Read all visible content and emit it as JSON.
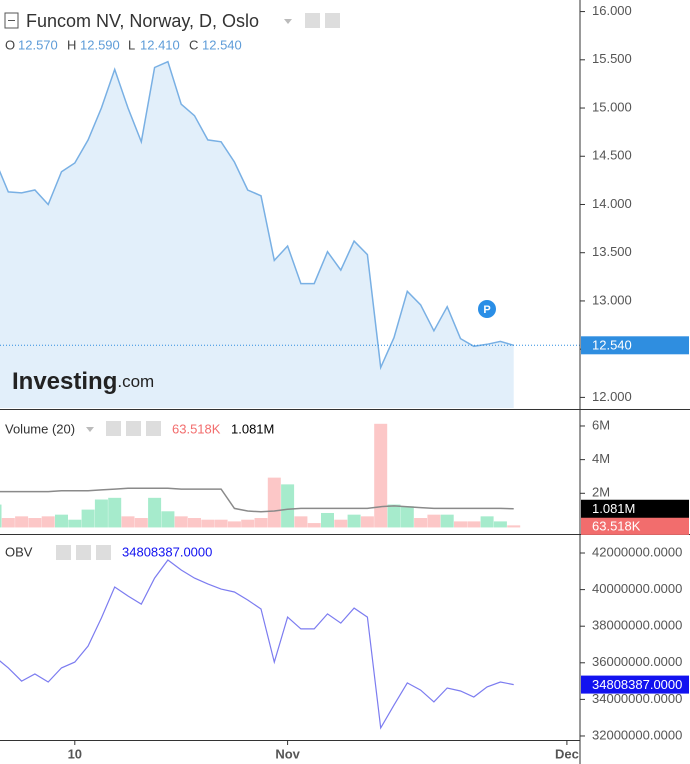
{
  "chart_data": [
    {
      "type": "area",
      "title": "Funcom NV, Norway, D, Oslo",
      "ohlc": [
        {
          "name": "O",
          "label": "12.570"
        },
        {
          "name": "H",
          "label": "12.590"
        },
        {
          "name": "L",
          "label": "12.410"
        },
        {
          "name": "C",
          "label": "12.540"
        }
      ],
      "watermark": [
        "Investing",
        ".com"
      ],
      "color": "#79b0e4",
      "fill": "#e2effa",
      "values": [
        14.46,
        14.13,
        14.12,
        14.15,
        14.0,
        14.34,
        14.43,
        14.67,
        15.0,
        15.4,
        15.0,
        14.65,
        15.42,
        15.48,
        15.04,
        14.92,
        14.67,
        14.65,
        14.44,
        14.15,
        14.09,
        13.42,
        13.57,
        13.18,
        13.18,
        13.51,
        13.32,
        13.62,
        13.48,
        12.31,
        12.62,
        13.1,
        12.96,
        12.69,
        12.94,
        12.61,
        12.53,
        12.55,
        12.58,
        12.54
      ],
      "current": {
        "value": 12.54,
        "label": "12.540",
        "color": "#2f8ee0"
      },
      "xlim": [
        0.376,
        43.985
      ],
      "ylim": [
        11.89,
        16.12
      ],
      "yticks": [
        {
          "value": 16,
          "label": "16.000"
        },
        {
          "value": 15.5,
          "label": "15.500"
        },
        {
          "value": 15,
          "label": "15.000"
        },
        {
          "value": 14.5,
          "label": "14.500"
        },
        {
          "value": 14,
          "label": "14.000"
        },
        {
          "value": 13.5,
          "label": "13.500"
        },
        {
          "value": 13,
          "label": "13.000"
        },
        {
          "value": 12.5,
          "label": "12.500"
        },
        {
          "value": 12,
          "label": "12.000"
        }
      ]
    },
    {
      "type": "bar",
      "title": "Volume (20)",
      "series": [
        {
          "type": "bar",
          "values": [
            1300000,
            500000,
            600000,
            500000,
            600000,
            700000,
            400000,
            1000000,
            1600000,
            1700000,
            600000,
            500000,
            1700000,
            900000,
            600000,
            500000,
            400000,
            400000,
            300000,
            400000,
            500000,
            2900000,
            2500000,
            600000,
            200000,
            800000,
            400000,
            700000,
            600000,
            6100000,
            1300000,
            1200000,
            500000,
            700000,
            700000,
            300000,
            300000,
            600000,
            300000,
            63518
          ],
          "colors": [
            "#a6ebcc",
            "#fcc7c7",
            "#fcc7c7",
            "#fcc7c7",
            "#fcc7c7",
            "#a6ebcc",
            "#a6ebcc",
            "#a6ebcc",
            "#a6ebcc",
            "#a6ebcc",
            "#fcc7c7",
            "#fcc7c7",
            "#a6ebcc",
            "#a6ebcc",
            "#fcc7c7",
            "#fcc7c7",
            "#fcc7c7",
            "#fcc7c7",
            "#fcc7c7",
            "#fcc7c7",
            "#fcc7c7",
            "#fcc7c7",
            "#a6ebcc",
            "#fcc7c7",
            "#fcc7c7",
            "#a6ebcc",
            "#fcc7c7",
            "#a6ebcc",
            "#fcc7c7",
            "#fcc7c7",
            "#a6ebcc",
            "#a6ebcc",
            "#fcc7c7",
            "#fcc7c7",
            "#a6ebcc",
            "#fcc7c7",
            "#fcc7c7",
            "#a6ebcc",
            "#a6ebcc",
            "#fcc7c7"
          ],
          "current": {
            "value": 63518,
            "label": "63.518K",
            "color": "#f26d6d"
          }
        },
        {
          "type": "line",
          "color": "#8a8a8a",
          "values": [
            2100000,
            2100000,
            2100000,
            2100000,
            2100000,
            2150000,
            2150000,
            2150000,
            2200000,
            2250000,
            2300000,
            2300000,
            2300000,
            2300000,
            2250000,
            2250000,
            2250000,
            2250000,
            1100000,
            950000,
            900000,
            950000,
            1050000,
            1100000,
            1100000,
            1100000,
            1100000,
            1100000,
            1100000,
            1200000,
            1250000,
            1200000,
            1150000,
            1100000,
            1100000,
            1100000,
            1100000,
            1100000,
            1100000,
            1081000
          ],
          "current": {
            "value": 1081000,
            "label": "1.081M",
            "color": "#000000"
          }
        }
      ],
      "xlim": [
        0.376,
        43.985
      ],
      "ylim": [
        -360000,
        6890000
      ],
      "yticks": [
        {
          "value": 6000000,
          "label": "6M"
        },
        {
          "value": 4000000,
          "label": "4M"
        },
        {
          "value": 2000000,
          "label": "2M"
        }
      ]
    },
    {
      "type": "line",
      "title": "OBV",
      "color": "#7c7cf0",
      "values": [
        36320000,
        35720000,
        35000000,
        35390000,
        34950000,
        35720000,
        36040000,
        36920000,
        38450000,
        40140000,
        39650000,
        39210000,
        40630000,
        41620000,
        41070000,
        40630000,
        40310000,
        40030000,
        39870000,
        39430000,
        38940000,
        36040000,
        38500000,
        37850000,
        37850000,
        38670000,
        38170000,
        38990000,
        38500000,
        32440000,
        33690000,
        34900000,
        34510000,
        33860000,
        34620000,
        34460000,
        34130000,
        34680000,
        34950000,
        34808387
      ],
      "current": {
        "value": 34808387,
        "label": "34808387.0000",
        "color": "#1212f0"
      },
      "xlim": [
        0.376,
        43.985
      ],
      "ylim": [
        31780000,
        42930000
      ],
      "yticks": [
        {
          "value": 42000000,
          "label": "42000000.0000"
        },
        {
          "value": 40000000,
          "label": "40000000.0000"
        },
        {
          "value": 38000000,
          "label": "38000000.0000"
        },
        {
          "value": 36000000,
          "label": "36000000.0000"
        },
        {
          "value": 34000000,
          "label": "34000000.0000"
        },
        {
          "value": 32000000,
          "label": "32000000.0000"
        }
      ],
      "xticks": [
        {
          "value": 6,
          "label": "10"
        },
        {
          "value": 22,
          "label": "Nov"
        },
        {
          "value": 43,
          "label": "Dec"
        }
      ]
    }
  ]
}
